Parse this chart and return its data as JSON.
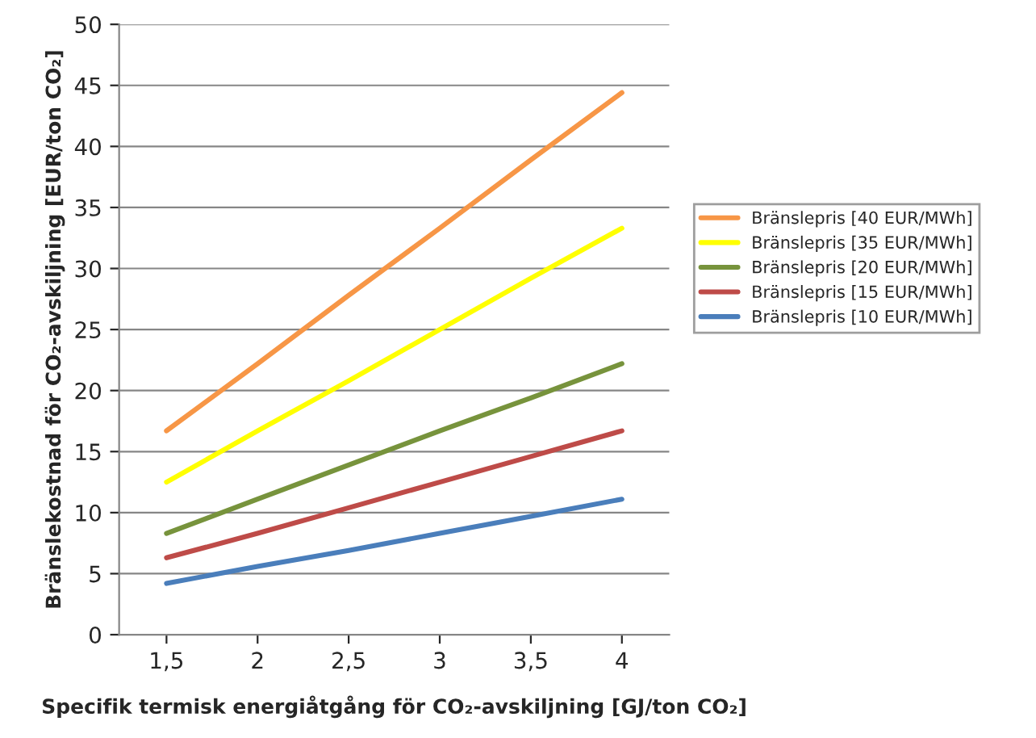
{
  "chart_data": {
    "type": "line",
    "xlabel": "Specifik termisk energiåtgång för CO₂-avskiljning [GJ/ton CO₂]",
    "ylabel": "Bränslekostnad för CO₂-avskiljning [EUR/ton CO₂]",
    "categories": [
      "1,5",
      "2",
      "2,5",
      "3",
      "3,5",
      "4"
    ],
    "series": [
      {
        "name": "Bränslepris [40 EUR/MWh]",
        "color": "#f79646",
        "values": [
          16.7,
          22.2,
          27.8,
          33.3,
          38.9,
          44.4
        ]
      },
      {
        "name": "Bränslepris [35 EUR/MWh]",
        "color": "#ffff00",
        "values": [
          12.5,
          16.7,
          20.8,
          25.0,
          29.2,
          33.3
        ]
      },
      {
        "name": "Bränslepris [20 EUR/MWh]",
        "color": "#77933c",
        "values": [
          8.3,
          11.1,
          13.9,
          16.7,
          19.4,
          22.2
        ]
      },
      {
        "name": "Bränslepris [15 EUR/MWh]",
        "color": "#be4b48",
        "values": [
          6.3,
          8.3,
          10.4,
          12.5,
          14.6,
          16.7
        ]
      },
      {
        "name": "Bränslepris [10 EUR/MWh]",
        "color": "#4a7ebb",
        "values": [
          4.2,
          5.6,
          6.9,
          8.3,
          9.7,
          11.1
        ]
      }
    ],
    "ylim": [
      0,
      50
    ],
    "yticks": [
      0,
      5,
      10,
      15,
      20,
      25,
      30,
      35,
      40,
      45,
      50
    ],
    "grid": "y",
    "legend": "right",
    "marker": "none",
    "line_style": "solid"
  }
}
